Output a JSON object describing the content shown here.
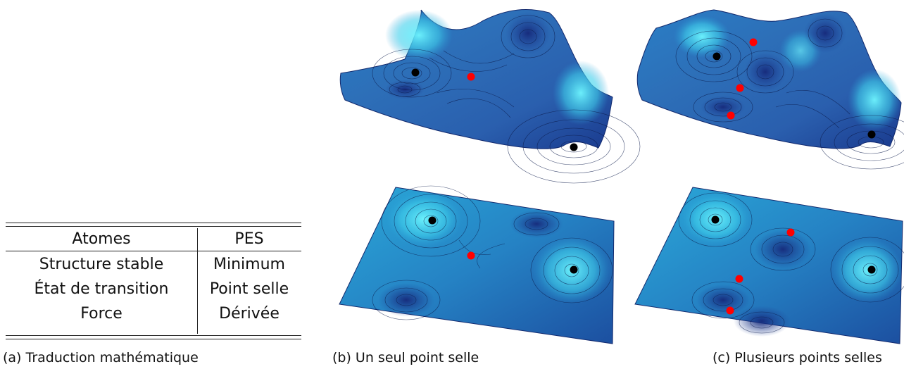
{
  "table": {
    "headers": [
      "Atomes",
      "PES"
    ],
    "rows": [
      [
        "Structure stable",
        "Minimum"
      ],
      [
        "État de transition",
        "Point selle"
      ],
      [
        "Force",
        "Dérivée"
      ]
    ]
  },
  "captions": {
    "a": "(a) Traduction mathématique",
    "b": "(b) Un seul point selle",
    "c": "(c) Plusieurs points selles"
  },
  "colors": {
    "minimum_marker": "#000000",
    "saddle_marker": "#ff0000",
    "surface_dark": "#1a2f86",
    "surface_mid": "#1f78b4",
    "surface_light": "#5ef0ff"
  },
  "panels": {
    "b": {
      "minima_count": 2,
      "saddle_count": 1
    },
    "c": {
      "minima_count": 2,
      "saddle_count": 3
    }
  }
}
